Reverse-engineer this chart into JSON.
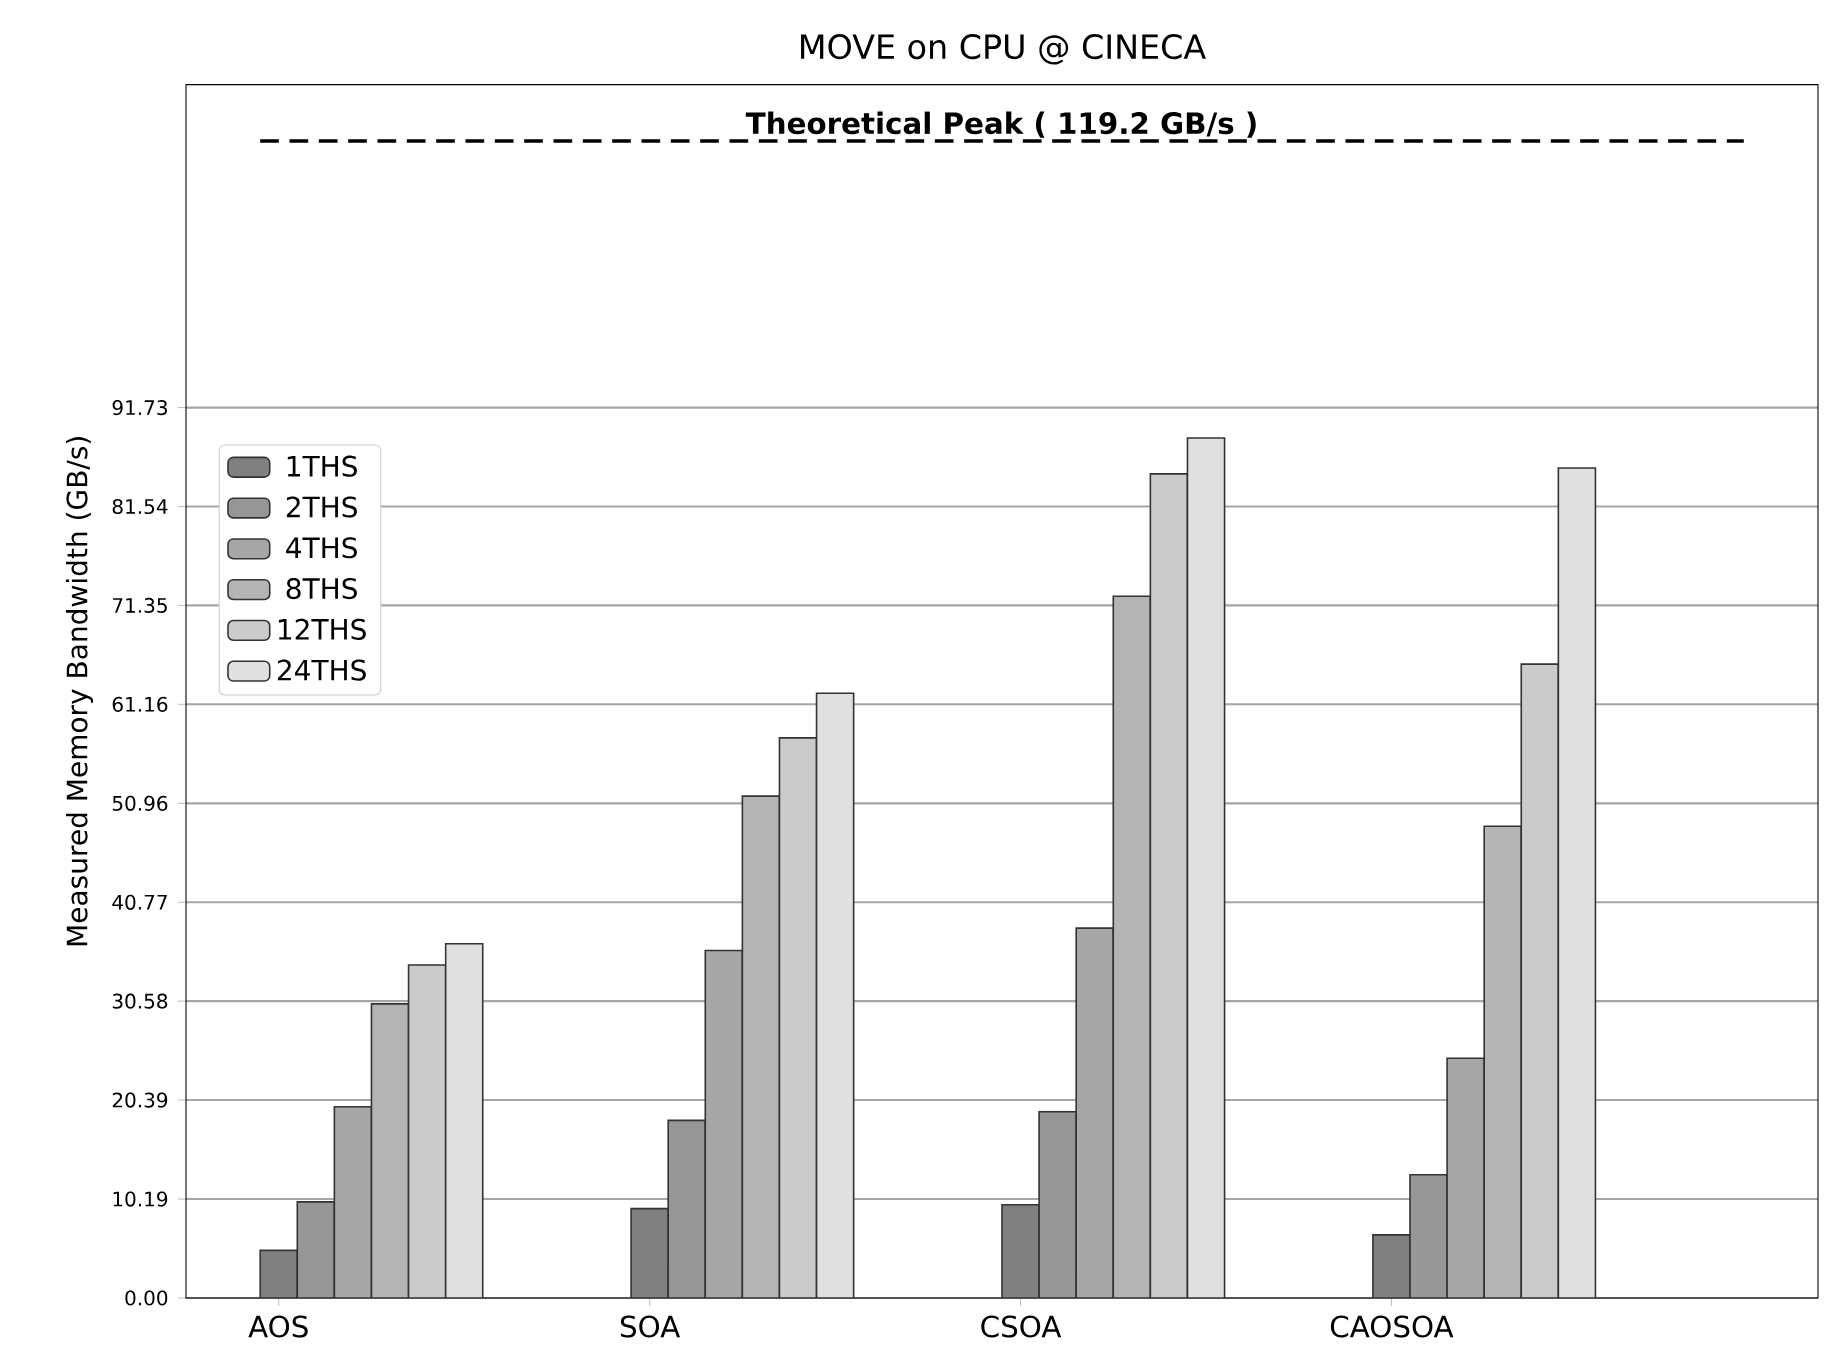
{
  "chart_data": {
    "type": "bar",
    "title": "MOVE on CPU @ CINECA",
    "ylabel": "Measured Memory Bandwidth (GB/s)",
    "categories": [
      "AOS",
      "SOA",
      "CSOA",
      "CAOSOA"
    ],
    "series": [
      {
        "name": "1THS",
        "color": "#808080",
        "values": [
          4.9,
          9.2,
          9.6,
          6.5
        ]
      },
      {
        "name": "2THS",
        "color": "#969696",
        "values": [
          9.9,
          18.3,
          19.2,
          12.7
        ]
      },
      {
        "name": "4THS",
        "color": "#a6a6a6",
        "values": [
          19.7,
          35.8,
          38.1,
          24.7
        ]
      },
      {
        "name": "8THS",
        "color": "#b4b4b4",
        "values": [
          30.3,
          51.7,
          72.3,
          48.6
        ]
      },
      {
        "name": "12THS",
        "color": "#cbcbcb",
        "values": [
          34.3,
          57.7,
          84.9,
          65.3
        ]
      },
      {
        "name": "24THS",
        "color": "#e0e0e0",
        "values": [
          36.5,
          62.3,
          88.6,
          85.5
        ]
      }
    ],
    "ylim": [
      0,
      125
    ],
    "yticks": [
      {
        "value": 0,
        "label": "0.00"
      },
      10.19,
      20.39,
      30.58,
      40.77,
      50.96,
      61.16,
      71.35,
      81.54,
      91.73
    ],
    "ref_lines": [
      {
        "axis": "y",
        "value": 119.2,
        "label": "Theoretical Peak ( 119.2 GB/s )",
        "line_style": "dashed",
        "color": "#000000"
      }
    ],
    "grid": "y",
    "legend": "left"
  }
}
